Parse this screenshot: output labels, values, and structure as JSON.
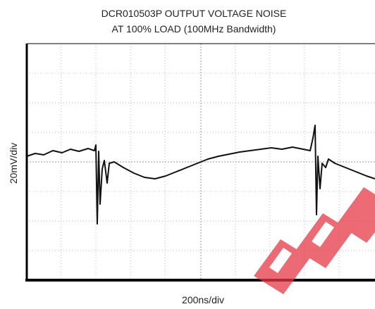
{
  "header": {
    "title_line1": "DCR010503P OUTPUT VOLTAGE NOISE",
    "title_line2": "AT 100% LOAD (100MHz Bandwidth)"
  },
  "axes": {
    "y_label": "20mV/div",
    "x_label": "200ns/div"
  }
}
